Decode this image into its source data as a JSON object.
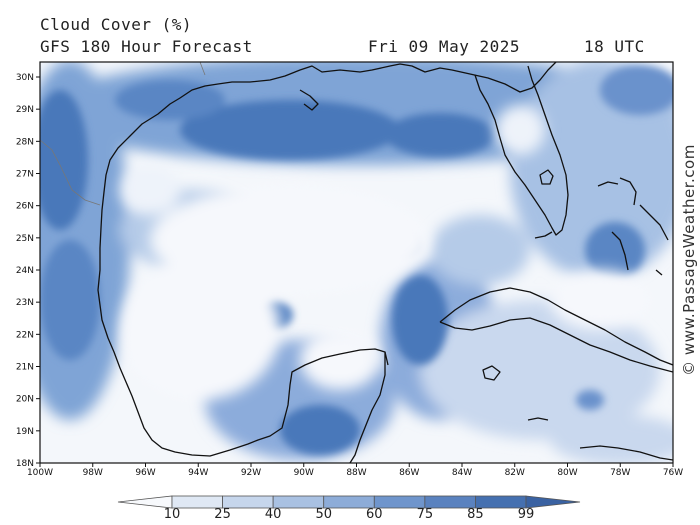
{
  "header": {
    "title": "Cloud Cover (%)",
    "subtitle": "GFS 180 Hour Forecast",
    "date": "Fri 09 May 2025",
    "time": "18 UTC"
  },
  "map": {
    "lat_labels": [
      "30N",
      "29N",
      "28N",
      "27N",
      "26N",
      "25N",
      "24N",
      "23N",
      "22N",
      "21N",
      "20N",
      "19N",
      "18N"
    ],
    "lon_labels": [
      "100W",
      "98W",
      "96W",
      "94W",
      "92W",
      "90W",
      "88W",
      "86W",
      "84W",
      "82W",
      "80W",
      "78W",
      "76W"
    ],
    "colors": {
      "land_line": "#111111",
      "c10": "#f2f6fb",
      "c40": "#c2d4ec",
      "c60": "#8fb0dc",
      "c75": "#5f8cc9",
      "c85": "#4a78ba",
      "c99": "#3a66a8"
    }
  },
  "colorbar": {
    "ticks": [
      "10",
      "25",
      "40",
      "50",
      "60",
      "75",
      "85",
      "99"
    ],
    "colors": [
      "#f7f9fc",
      "#dfe8f4",
      "#c6d6ec",
      "#a9c1e2",
      "#8dacd8",
      "#6f95cc",
      "#5a82bf",
      "#4570b0",
      "#3a62a2"
    ]
  },
  "credit": "© www.PassageWeather.com"
}
